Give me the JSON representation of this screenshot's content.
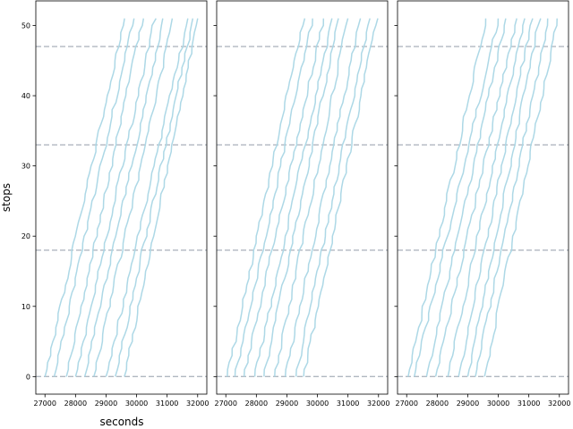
{
  "chart_data": {
    "type": "line",
    "layout": "three side-by-side panels with shared y-axis",
    "xlabel": "seconds",
    "ylabel": "stops",
    "xlim": [
      26700,
      32300
    ],
    "ylim": [
      -2.5,
      53.5
    ],
    "xticks": [
      "27000",
      "28000",
      "29000",
      "30000",
      "31000",
      "32000"
    ],
    "yticks": [
      "0",
      "10",
      "20",
      "30",
      "40",
      "50"
    ],
    "xtick_values": [
      27000,
      28000,
      29000,
      30000,
      31000,
      32000
    ],
    "ytick_values": [
      0,
      10,
      20,
      30,
      40,
      50
    ],
    "reference_lines": [
      0,
      18,
      33,
      47
    ],
    "colors": {
      "series": "#add8e6",
      "reference": "#b0b7c0",
      "axes": "#000000"
    },
    "grid": false,
    "legend": "none",
    "panels": [
      {
        "start_seconds": [
          27000,
          27300,
          27700,
          28000,
          28300,
          28600,
          29000,
          29300,
          29600
        ],
        "end_seconds": [
          29600,
          29900,
          30200,
          30600,
          30900,
          31200,
          31700,
          31850,
          32000
        ]
      },
      {
        "start_seconds": [
          27050,
          27300,
          27600,
          27950,
          28250,
          28600,
          28950,
          29300,
          29550
        ],
        "end_seconds": [
          29550,
          29850,
          30200,
          30500,
          30700,
          31000,
          31400,
          31700,
          31950
        ]
      },
      {
        "start_seconds": [
          27050,
          27250,
          27650,
          27950,
          28350,
          28700,
          29000,
          29250,
          29550
        ],
        "end_seconds": [
          29600,
          30000,
          30250,
          30600,
          30850,
          31100,
          31350,
          31650,
          31950
        ]
      }
    ],
    "stops_max": 51
  }
}
